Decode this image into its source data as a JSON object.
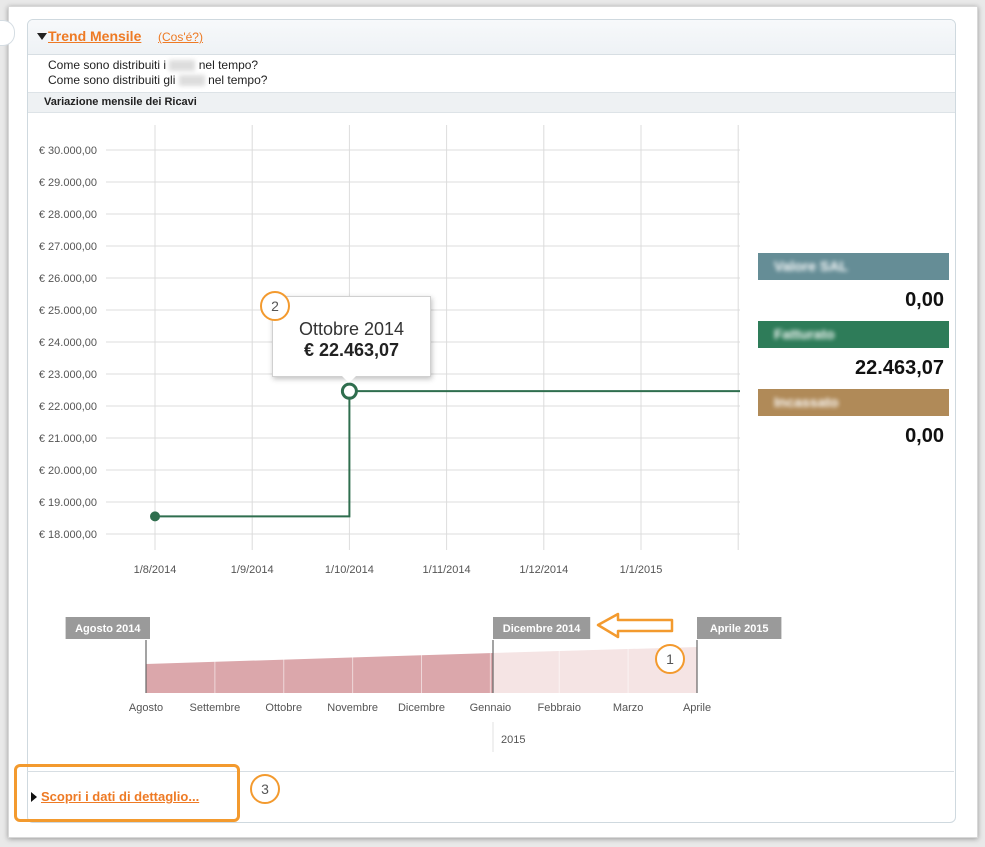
{
  "panel": {
    "title": "Trend Mensile",
    "help_link": "(Cos'é?)",
    "question1_pre": "Come sono distribuiti i ",
    "question1_post": " nel tempo?",
    "question2_pre": "Come sono distribuiti gli ",
    "question2_post": " nel tempo?"
  },
  "chart_data": {
    "type": "line",
    "title": "Variazione mensile dei Ricavi",
    "x_categories": [
      "1/8/2014",
      "1/9/2014",
      "1/10/2014",
      "1/11/2014",
      "1/12/2014",
      "1/1/2015"
    ],
    "y_ticks": [
      "€ 18.000,00",
      "€ 19.000,00",
      "€ 20.000,00",
      "€ 21.000,00",
      "€ 22.000,00",
      "€ 23.000,00",
      "€ 24.000,00",
      "€ 25.000,00",
      "€ 26.000,00",
      "€ 27.000,00",
      "€ 28.000,00",
      "€ 29.000,00",
      "€ 30.000,00"
    ],
    "ylim": [
      18000,
      30000
    ],
    "series": [
      {
        "values": [
          {
            "x": "2014-08-01",
            "y": 18550
          },
          {
            "x": "2014-10-01",
            "y": 22463.07
          }
        ]
      }
    ],
    "line_style": "step",
    "line_color": "#2f6e4e",
    "grid": true,
    "tooltip": {
      "label": "Ottobre 2014",
      "value": "€ 22.463,07"
    }
  },
  "side_panel": [
    {
      "label": "Valore SAL",
      "value": "0,00",
      "color": "#658d96"
    },
    {
      "label": "Fatturato",
      "value": "22.463,07",
      "color": "#2e7c59"
    },
    {
      "label": "Incassato",
      "value": "0,00",
      "color": "#b08a58"
    }
  ],
  "navigator": {
    "start_label": "Agosto 2014",
    "selected_end_label": "Dicembre 2014",
    "end_label": "Aprile 2015",
    "months": [
      "Agosto",
      "Settembre",
      "Ottobre",
      "Novembre",
      "Dicembre",
      "Gennaio",
      "Febbraio",
      "Marzo",
      "Aprile"
    ],
    "year_label": "2015",
    "selected_color": "#dba7ab",
    "unselected_color": "#f5e4e4"
  },
  "callouts": [
    "1",
    "2",
    "3"
  ],
  "detail": {
    "link": "Scopri i dati di dettaglio..."
  }
}
